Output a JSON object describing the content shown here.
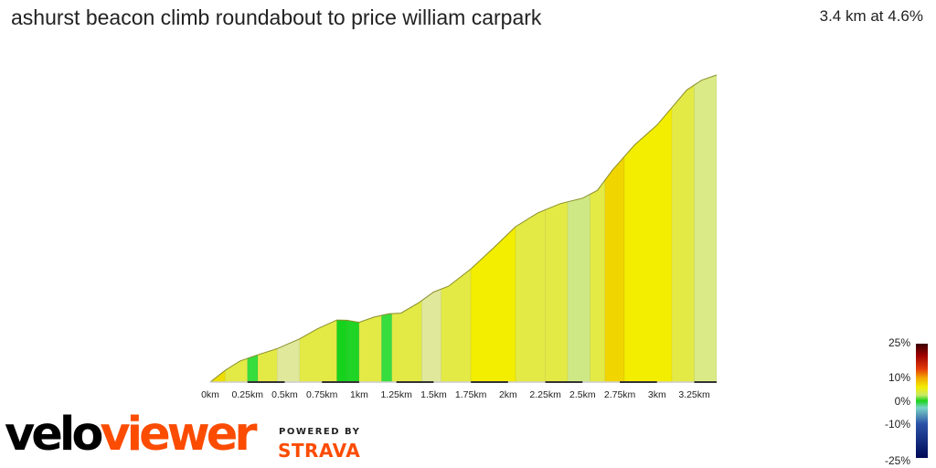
{
  "header": {
    "title": "ashurst beacon climb roundabout to price william carpark",
    "summary": "3.4 km at 4.6%"
  },
  "brand": {
    "part1": "velo",
    "part2": "viewer",
    "powered_by": "POWERED BY",
    "strava": "STRAVA"
  },
  "colors": {
    "strava_orange": "#fc4c02",
    "gradient_colors": [
      "#f3ed00",
      "#e3ea45",
      "#cfe886",
      "#e0e89c",
      "#37dc3d",
      "#17d21c",
      "#eee100",
      "#f0d500"
    ]
  },
  "gradient_scale": {
    "labels": [
      "25%",
      "10%",
      "0%",
      "-10%",
      "-25%"
    ],
    "values": [
      25,
      10,
      0,
      -10,
      -25
    ]
  },
  "chart_data": {
    "type": "area",
    "title": "ashurst beacon climb roundabout to price william carpark",
    "xlabel": "",
    "ylabel": "",
    "x_unit": "km",
    "tick_labels": [
      "0km",
      "0.25km",
      "0.5km",
      "0.75km",
      "1km",
      "1.25km",
      "1.5km",
      "1.75km",
      "2km",
      "2.25km",
      "2.5km",
      "2.75km",
      "3km",
      "3.25km"
    ],
    "tick_values": [
      0,
      0.25,
      0.5,
      0.75,
      1,
      1.25,
      1.5,
      1.75,
      2,
      2.25,
      2.5,
      2.75,
      3,
      3.25
    ],
    "xlim": [
      0,
      3.4
    ],
    "grid": false,
    "profile": {
      "x": [
        0,
        0.1,
        0.2,
        0.3,
        0.45,
        0.6,
        0.72,
        0.85,
        0.92,
        1.0,
        1.1,
        1.2,
        1.28,
        1.4,
        1.5,
        1.6,
        1.75,
        1.9,
        2.05,
        2.2,
        2.35,
        2.5,
        2.6,
        2.7,
        2.85,
        3.0,
        3.1,
        3.2,
        3.3,
        3.4
      ],
      "elevation_rel": [
        0,
        3.6,
        6.5,
        8.1,
        10.3,
        13.3,
        16.4,
        19.1,
        19.0,
        18.4,
        20.0,
        21.0,
        21.2,
        24.4,
        27.7,
        29.5,
        34.8,
        41.2,
        47.8,
        52.1,
        54.9,
        56.6,
        59.0,
        65.2,
        73.0,
        79.1,
        84.5,
        89.9,
        92.9,
        94.5
      ]
    },
    "segments": [
      {
        "x0": 0.0,
        "x1": 0.1,
        "color": "#eedd00"
      },
      {
        "x0": 0.1,
        "x1": 0.25,
        "color": "#e3ea45"
      },
      {
        "x0": 0.25,
        "x1": 0.32,
        "color": "#37dc3d"
      },
      {
        "x0": 0.32,
        "x1": 0.45,
        "color": "#e3ea45"
      },
      {
        "x0": 0.45,
        "x1": 0.6,
        "color": "#e0e89c"
      },
      {
        "x0": 0.6,
        "x1": 0.85,
        "color": "#e3ea45"
      },
      {
        "x0": 0.85,
        "x1": 0.92,
        "color": "#17d21c"
      },
      {
        "x0": 0.92,
        "x1": 1.0,
        "color": "#1fd424"
      },
      {
        "x0": 1.0,
        "x1": 1.15,
        "color": "#e3ea45"
      },
      {
        "x0": 1.15,
        "x1": 1.22,
        "color": "#37dc3d"
      },
      {
        "x0": 1.22,
        "x1": 1.42,
        "color": "#e3ea45"
      },
      {
        "x0": 1.42,
        "x1": 1.55,
        "color": "#e0e89c"
      },
      {
        "x0": 1.55,
        "x1": 1.75,
        "color": "#e3ea45"
      },
      {
        "x0": 1.75,
        "x1": 2.05,
        "color": "#f3ed00"
      },
      {
        "x0": 2.05,
        "x1": 2.25,
        "color": "#e3ea45"
      },
      {
        "x0": 2.25,
        "x1": 2.4,
        "color": "#e3ea45"
      },
      {
        "x0": 2.4,
        "x1": 2.55,
        "color": "#cfe886"
      },
      {
        "x0": 2.55,
        "x1": 2.65,
        "color": "#e3ea45"
      },
      {
        "x0": 2.65,
        "x1": 2.78,
        "color": "#f0d500"
      },
      {
        "x0": 2.78,
        "x1": 3.1,
        "color": "#f3ed00"
      },
      {
        "x0": 3.1,
        "x1": 3.25,
        "color": "#e3ea45"
      },
      {
        "x0": 3.25,
        "x1": 3.4,
        "color": "#d9ea86"
      }
    ]
  }
}
